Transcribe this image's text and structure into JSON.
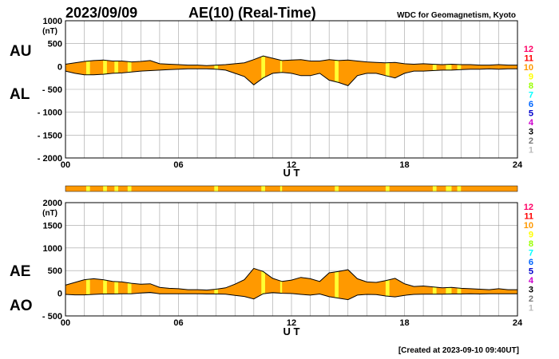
{
  "header": {
    "date": "2023/09/09",
    "title": "AE(10) (Real-Time)",
    "source": "WDC for Geomagnetism, Kyoto",
    "footer": "[Created at 2023-09-10 09:40UT]"
  },
  "colors": {
    "fill_main": "#ff9900",
    "fill_highlight": "#ffff33",
    "grid": "#a0a0a0",
    "line": "#000000"
  },
  "legend_scale": [
    {
      "label": "12",
      "color": "#ff0066"
    },
    {
      "label": "11",
      "color": "#ff0000"
    },
    {
      "label": "10",
      "color": "#ff9900"
    },
    {
      "label": "9",
      "color": "#ffff00"
    },
    {
      "label": "8",
      "color": "#99ff00"
    },
    {
      "label": "7",
      "color": "#00ffff"
    },
    {
      "label": "6",
      "color": "#0066ff"
    },
    {
      "label": "5",
      "color": "#0000cc"
    },
    {
      "label": "4",
      "color": "#cc00cc"
    },
    {
      "label": "3",
      "color": "#000000"
    },
    {
      "label": "2",
      "color": "#777777"
    },
    {
      "label": "1",
      "color": "#bbbbbb"
    }
  ],
  "chart_data": [
    {
      "type": "area",
      "unit": "(nT)",
      "xlabel": "U T",
      "xlim": [
        0,
        24
      ],
      "ylim": [
        -2000,
        1000
      ],
      "x_ticks": [
        "00",
        "06",
        "12",
        "18",
        "24"
      ],
      "y_ticks": [
        "1000",
        "500",
        "0",
        "- 500",
        "- 1000",
        "- 1500",
        "- 2000"
      ],
      "series_labels": [
        "AU",
        "AL"
      ],
      "grid": true,
      "upper_series": {
        "name": "AU",
        "x": [
          0,
          0.5,
          1,
          1.5,
          2,
          2.5,
          3,
          3.5,
          4,
          4.5,
          5,
          5.5,
          6,
          6.5,
          7,
          7.5,
          8,
          8.5,
          9,
          9.5,
          10,
          10.5,
          11,
          11.5,
          12,
          12.5,
          13,
          13.5,
          14,
          14.5,
          15,
          15.5,
          16,
          16.5,
          17,
          17.5,
          18,
          18.5,
          19,
          19.5,
          20,
          20.5,
          21,
          21.5,
          22,
          22.5,
          23,
          23.5,
          24
        ],
        "values": [
          50,
          80,
          110,
          130,
          140,
          120,
          120,
          100,
          110,
          130,
          60,
          50,
          40,
          30,
          30,
          20,
          30,
          40,
          60,
          80,
          150,
          230,
          180,
          130,
          140,
          150,
          120,
          120,
          150,
          130,
          140,
          120,
          100,
          90,
          80,
          90,
          60,
          50,
          60,
          50,
          40,
          50,
          40,
          40,
          30,
          30,
          40,
          30,
          30
        ]
      },
      "lower_series": {
        "name": "AL",
        "x": [
          0,
          0.5,
          1,
          1.5,
          2,
          2.5,
          3,
          3.5,
          4,
          4.5,
          5,
          5.5,
          6,
          6.5,
          7,
          7.5,
          8,
          8.5,
          9,
          9.5,
          10,
          10.5,
          11,
          11.5,
          12,
          12.5,
          13,
          13.5,
          14,
          14.5,
          15,
          15.5,
          16,
          16.5,
          17,
          17.5,
          18,
          18.5,
          19,
          19.5,
          20,
          20.5,
          21,
          21.5,
          22,
          22.5,
          23,
          23.5,
          24
        ],
        "values": [
          -100,
          -150,
          -180,
          -180,
          -170,
          -150,
          -140,
          -120,
          -100,
          -90,
          -80,
          -70,
          -60,
          -50,
          -50,
          -50,
          -60,
          -80,
          -150,
          -220,
          -400,
          -250,
          -150,
          -130,
          -150,
          -200,
          -200,
          -150,
          -300,
          -350,
          -420,
          -200,
          -150,
          -150,
          -200,
          -250,
          -150,
          -100,
          -100,
          -90,
          -80,
          -80,
          -70,
          -60,
          -60,
          -50,
          -60,
          -50,
          -50
        ]
      }
    },
    {
      "type": "area",
      "unit": "(nT)",
      "xlabel": "U T",
      "xlim": [
        0,
        24
      ],
      "ylim": [
        -500,
        2000
      ],
      "x_ticks": [
        "00",
        "06",
        "12",
        "18",
        "24"
      ],
      "y_ticks": [
        "2000",
        "1500",
        "1000",
        "500",
        "0",
        "- 500"
      ],
      "series_labels": [
        "AE",
        "AO"
      ],
      "grid": true,
      "upper_series": {
        "name": "AE",
        "x": [
          0,
          0.5,
          1,
          1.5,
          2,
          2.5,
          3,
          3.5,
          4,
          4.5,
          5,
          5.5,
          6,
          6.5,
          7,
          7.5,
          8,
          8.5,
          9,
          9.5,
          10,
          10.5,
          11,
          11.5,
          12,
          12.5,
          13,
          13.5,
          14,
          14.5,
          15,
          15.5,
          16,
          16.5,
          17,
          17.5,
          18,
          18.5,
          19,
          19.5,
          20,
          20.5,
          21,
          21.5,
          22,
          22.5,
          23,
          23.5,
          24
        ],
        "values": [
          180,
          240,
          300,
          320,
          300,
          260,
          250,
          220,
          200,
          210,
          130,
          110,
          100,
          80,
          80,
          70,
          90,
          120,
          200,
          300,
          550,
          480,
          330,
          260,
          290,
          350,
          320,
          260,
          450,
          480,
          520,
          320,
          250,
          240,
          280,
          330,
          210,
          150,
          160,
          140,
          120,
          130,
          110,
          100,
          90,
          80,
          100,
          80,
          80
        ]
      },
      "lower_series": {
        "name": "AO",
        "x": [
          0,
          0.5,
          1,
          1.5,
          2,
          2.5,
          3,
          3.5,
          4,
          4.5,
          5,
          5.5,
          6,
          6.5,
          7,
          7.5,
          8,
          8.5,
          9,
          9.5,
          10,
          10.5,
          11,
          11.5,
          12,
          12.5,
          13,
          13.5,
          14,
          14.5,
          15,
          15.5,
          16,
          16.5,
          17,
          17.5,
          18,
          18.5,
          19,
          19.5,
          20,
          20.5,
          21,
          21.5,
          22,
          22.5,
          23,
          23.5,
          24
        ],
        "values": [
          -25,
          -35,
          -35,
          -25,
          -15,
          -15,
          -10,
          -10,
          5,
          20,
          -10,
          -10,
          -10,
          -10,
          -10,
          -15,
          -15,
          -20,
          -45,
          -70,
          -125,
          -10,
          15,
          0,
          -5,
          -25,
          -40,
          -15,
          -75,
          -110,
          -140,
          -40,
          -25,
          -30,
          -60,
          -80,
          -45,
          -25,
          -20,
          -20,
          -20,
          -15,
          -15,
          -10,
          -15,
          -10,
          -10,
          -10,
          -10
        ]
      }
    }
  ],
  "yellow_bands": [
    {
      "start": 1.1,
      "end": 1.3
    },
    {
      "start": 2.0,
      "end": 2.2
    },
    {
      "start": 2.6,
      "end": 2.8
    },
    {
      "start": 3.3,
      "end": 3.5
    },
    {
      "start": 7.9,
      "end": 8.1
    },
    {
      "start": 10.4,
      "end": 10.6
    },
    {
      "start": 11.4,
      "end": 11.5
    },
    {
      "start": 14.3,
      "end": 14.5
    },
    {
      "start": 17.0,
      "end": 17.2
    },
    {
      "start": 19.5,
      "end": 19.7
    },
    {
      "start": 20.2,
      "end": 20.5
    },
    {
      "start": 20.8,
      "end": 21.0
    }
  ]
}
